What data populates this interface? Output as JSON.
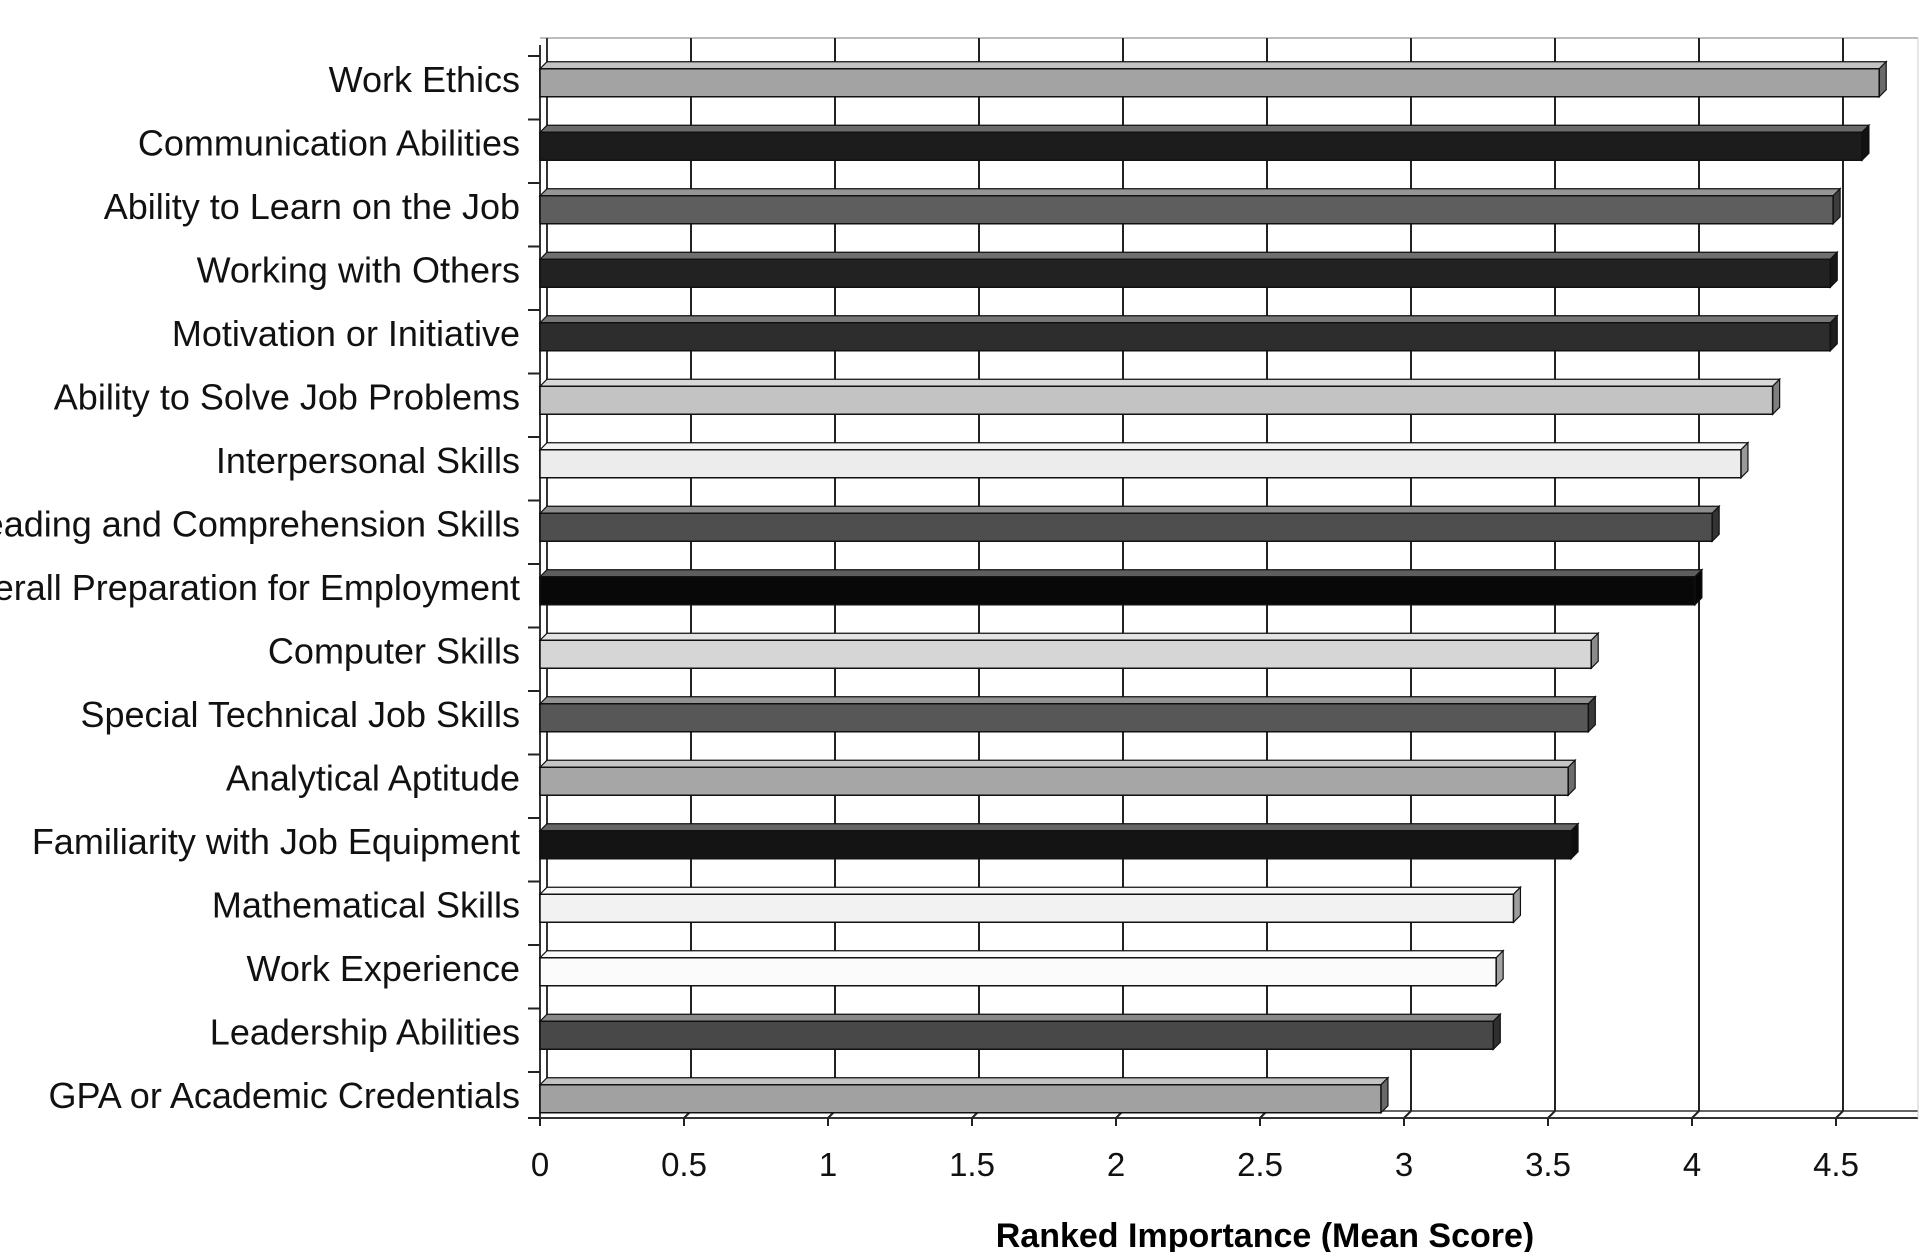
{
  "chart_data": {
    "type": "bar",
    "orientation": "horizontal",
    "style": "3d",
    "title": "",
    "xlabel": "Ranked Importance (Mean Score)",
    "ylabel": "",
    "xlim": [
      0,
      4.75
    ],
    "x_ticks": [
      "0",
      "0.5",
      "1",
      "1.5",
      "2",
      "2.5",
      "3",
      "3.5",
      "4",
      "4.5"
    ],
    "grid": "vertical",
    "legend": "none",
    "bars": [
      {
        "category": "Work Ethics",
        "value": 4.65,
        "color": "#a3a3a3"
      },
      {
        "category": "Communication Abilities",
        "value": 4.59,
        "color": "#1c1c1c"
      },
      {
        "category": "Ability to Learn on the Job",
        "value": 4.49,
        "color": "#5e5e5e"
      },
      {
        "category": "Working with Others",
        "value": 4.48,
        "color": "#222222"
      },
      {
        "category": "Motivation or Initiative",
        "value": 4.48,
        "color": "#2d2d2d"
      },
      {
        "category": "Ability to Solve Job Problems",
        "value": 4.28,
        "color": "#c3c3c3"
      },
      {
        "category": "Interpersonal Skills",
        "value": 4.17,
        "color": "#ececec"
      },
      {
        "category": "Reading and Comprehension Skills",
        "value": 4.07,
        "color": "#4e4e4e"
      },
      {
        "category": "Overall Preparation for Employment",
        "value": 4.01,
        "color": "#080808"
      },
      {
        "category": "Computer Skills",
        "value": 3.65,
        "color": "#d6d6d6"
      },
      {
        "category": "Special Technical Job Skills",
        "value": 3.64,
        "color": "#575757"
      },
      {
        "category": "Analytical Aptitude",
        "value": 3.57,
        "color": "#a6a6a6"
      },
      {
        "category": "Familiarity with Job Equipment",
        "value": 3.58,
        "color": "#141414"
      },
      {
        "category": "Mathematical Skills",
        "value": 3.38,
        "color": "#f2f2f2"
      },
      {
        "category": "Work Experience",
        "value": 3.32,
        "color": "#fbfbfb"
      },
      {
        "category": "Leadership Abilities",
        "value": 3.31,
        "color": "#484848"
      },
      {
        "category": "GPA or Academic Credentials",
        "value": 2.92,
        "color": "#a1a1a1"
      }
    ]
  }
}
